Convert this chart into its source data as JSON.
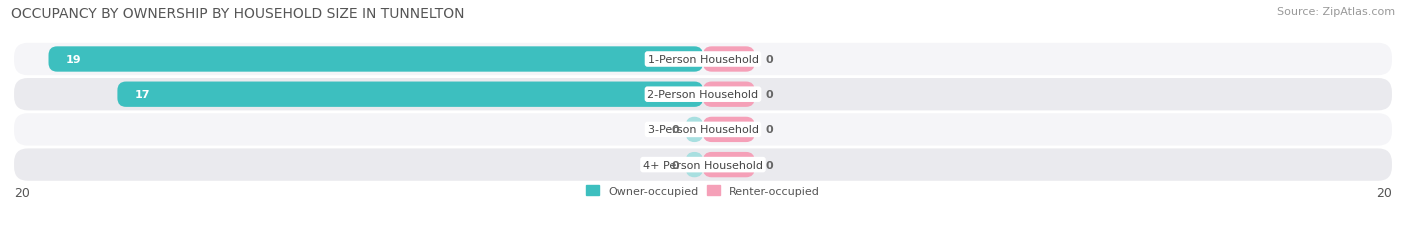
{
  "title": "OCCUPANCY BY OWNERSHIP BY HOUSEHOLD SIZE IN TUNNELTON",
  "source": "Source: ZipAtlas.com",
  "categories": [
    "1-Person Household",
    "2-Person Household",
    "3-Person Household",
    "4+ Person Household"
  ],
  "owner_values": [
    19,
    17,
    0,
    0
  ],
  "renter_values": [
    0,
    0,
    0,
    0
  ],
  "owner_color": "#3dbfbf",
  "owner_color_light": "#a8dfe0",
  "renter_color": "#f5a0b8",
  "xlim": 20,
  "title_fontsize": 10,
  "source_fontsize": 8,
  "label_fontsize": 8,
  "value_fontsize": 8,
  "legend_fontsize": 8,
  "legend_owner": "Owner-occupied",
  "legend_renter": "Renter-occupied",
  "background_color": "#ffffff",
  "row_colors": [
    "#f5f5f8",
    "#eaeaee"
  ],
  "renter_stub": 1.5,
  "owner_stub": 0.5
}
